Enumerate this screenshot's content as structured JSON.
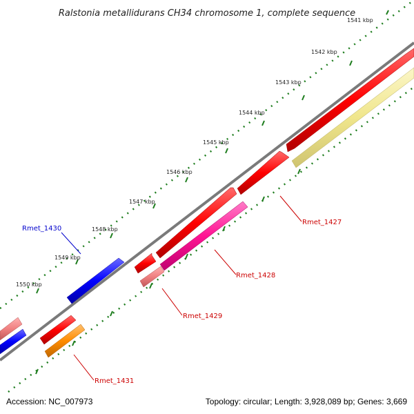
{
  "title": "Ralstonia metallidurans CH34 chromosome 1, complete sequence",
  "footer": {
    "accession": "Accession: NC_007973",
    "topology": "Topology: circular; Length: 3,928,089 bp; Genes: 3,669"
  },
  "ruler": {
    "ticks": [
      "1541 kbp",
      "1542 kbp",
      "1543 kbp",
      "1544 kbp",
      "1545 kbp",
      "1546 kbp",
      "1547 kbp",
      "1548 kbp",
      "1549 kbp",
      "1550 kbp"
    ]
  },
  "gene_labels": {
    "rmet_1427": "Rmet_1427",
    "rmet_1428": "Rmet_1428",
    "rmet_1429": "Rmet_1429",
    "rmet_1430": "Rmet_1430",
    "rmet_1431": "Rmet_1431"
  },
  "colors": {
    "backbone": "#7a7a7a",
    "ruler_dots": "#1e7d1e",
    "red": "#ff0000",
    "pink": "#ff1493",
    "light_red": "#f08080",
    "blue": "#0000ff",
    "orange": "#ff8c00",
    "pale_yellow": "#f0e68c",
    "label_red": "#cc0000",
    "label_blue": "#0000cc"
  }
}
